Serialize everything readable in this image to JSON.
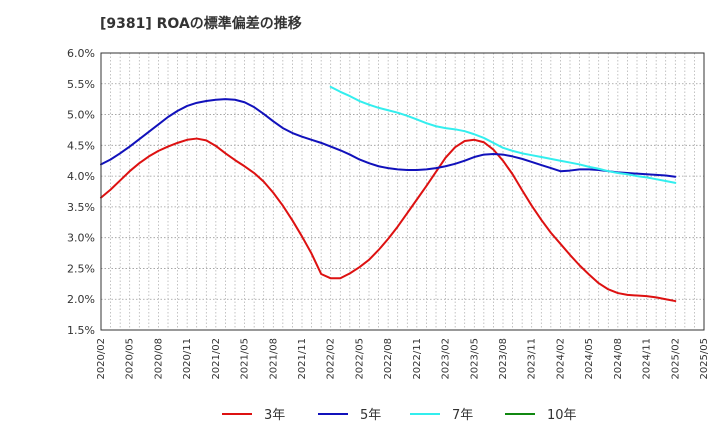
{
  "chart_data": {
    "type": "line",
    "title": "[9381]  ROAの標準偏差の推移",
    "xlabel": "",
    "ylabel": "",
    "ylim": [
      0.015,
      0.06
    ],
    "y_ticks": [
      "6.0%",
      "5.5%",
      "5.0%",
      "4.5%",
      "4.0%",
      "3.5%",
      "3.0%",
      "2.5%",
      "2.0%",
      "1.5%"
    ],
    "y_tick_values": [
      0.06,
      0.055,
      0.05,
      0.045,
      0.04,
      0.035,
      0.03,
      0.025,
      0.02,
      0.015
    ],
    "x_tick_labels": [
      "2020/02",
      "2020/05",
      "2020/08",
      "2020/11",
      "2021/02",
      "2021/05",
      "2021/08",
      "2021/11",
      "2022/02",
      "2022/05",
      "2022/08",
      "2022/11",
      "2023/02",
      "2023/05",
      "2023/08",
      "2023/11",
      "2024/02",
      "2024/05",
      "2024/08",
      "2024/11",
      "2025/02",
      "2025/05"
    ],
    "grid": true,
    "legend_position": "bottom",
    "colors": {
      "3y": "#dd1111",
      "5y": "#1111bb",
      "7y": "#33eeee",
      "10y": "#118811"
    },
    "series": [
      {
        "name": "3年",
        "color": "#dd1111",
        "points": [
          [
            "2020/02",
            0.0365
          ],
          [
            "2020/03",
            0.0378
          ],
          [
            "2020/04",
            0.0393
          ],
          [
            "2020/05",
            0.0408
          ],
          [
            "2020/06",
            0.0421
          ],
          [
            "2020/07",
            0.0432
          ],
          [
            "2020/08",
            0.0441
          ],
          [
            "2020/09",
            0.0448
          ],
          [
            "2020/10",
            0.0454
          ],
          [
            "2020/11",
            0.0459
          ],
          [
            "2020/12",
            0.0461
          ],
          [
            "2021/01",
            0.0458
          ],
          [
            "2021/02",
            0.0449
          ],
          [
            "2021/03",
            0.0437
          ],
          [
            "2021/04",
            0.0426
          ],
          [
            "2021/05",
            0.0416
          ],
          [
            "2021/06",
            0.0405
          ],
          [
            "2021/07",
            0.0391
          ],
          [
            "2021/08",
            0.0373
          ],
          [
            "2021/09",
            0.0352
          ],
          [
            "2021/10",
            0.0328
          ],
          [
            "2021/11",
            0.0302
          ],
          [
            "2021/12",
            0.0274
          ],
          [
            "2022/01",
            0.0241
          ],
          [
            "2022/02",
            0.0234
          ],
          [
            "2022/03",
            0.0234
          ],
          [
            "2022/04",
            0.0242
          ],
          [
            "2022/05",
            0.0252
          ],
          [
            "2022/06",
            0.0264
          ],
          [
            "2022/07",
            0.028
          ],
          [
            "2022/08",
            0.0298
          ],
          [
            "2022/09",
            0.0318
          ],
          [
            "2022/10",
            0.034
          ],
          [
            "2022/11",
            0.0362
          ],
          [
            "2022/12",
            0.0384
          ],
          [
            "2023/01",
            0.0407
          ],
          [
            "2023/02",
            0.043
          ],
          [
            "2023/03",
            0.0447
          ],
          [
            "2023/04",
            0.0457
          ],
          [
            "2023/05",
            0.0459
          ],
          [
            "2023/06",
            0.0455
          ],
          [
            "2023/07",
            0.0443
          ],
          [
            "2023/08",
            0.0425
          ],
          [
            "2023/09",
            0.0403
          ],
          [
            "2023/10",
            0.0377
          ],
          [
            "2023/11",
            0.0352
          ],
          [
            "2023/12",
            0.0329
          ],
          [
            "2024/01",
            0.0308
          ],
          [
            "2024/02",
            0.029
          ],
          [
            "2024/03",
            0.0272
          ],
          [
            "2024/04",
            0.0255
          ],
          [
            "2024/05",
            0.024
          ],
          [
            "2024/06",
            0.0226
          ],
          [
            "2024/07",
            0.0216
          ],
          [
            "2024/08",
            0.021
          ],
          [
            "2024/09",
            0.0207
          ],
          [
            "2024/10",
            0.0206
          ],
          [
            "2024/11",
            0.0205
          ],
          [
            "2024/12",
            0.0203
          ],
          [
            "2025/01",
            0.02
          ],
          [
            "2025/02",
            0.0197
          ]
        ]
      },
      {
        "name": "5年",
        "color": "#1111bb",
        "points": [
          [
            "2020/02",
            0.0419
          ],
          [
            "2020/03",
            0.0427
          ],
          [
            "2020/04",
            0.0437
          ],
          [
            "2020/05",
            0.0448
          ],
          [
            "2020/06",
            0.046
          ],
          [
            "2020/07",
            0.0472
          ],
          [
            "2020/08",
            0.0484
          ],
          [
            "2020/09",
            0.0496
          ],
          [
            "2020/10",
            0.0506
          ],
          [
            "2020/11",
            0.0514
          ],
          [
            "2020/12",
            0.0519
          ],
          [
            "2021/01",
            0.0522
          ],
          [
            "2021/02",
            0.0524
          ],
          [
            "2021/03",
            0.0525
          ],
          [
            "2021/04",
            0.0524
          ],
          [
            "2021/05",
            0.052
          ],
          [
            "2021/06",
            0.0512
          ],
          [
            "2021/07",
            0.0501
          ],
          [
            "2021/08",
            0.0489
          ],
          [
            "2021/09",
            0.0478
          ],
          [
            "2021/10",
            0.047
          ],
          [
            "2021/11",
            0.0464
          ],
          [
            "2021/12",
            0.0459
          ],
          [
            "2022/01",
            0.0454
          ],
          [
            "2022/02",
            0.0448
          ],
          [
            "2022/03",
            0.0442
          ],
          [
            "2022/04",
            0.0435
          ],
          [
            "2022/05",
            0.0427
          ],
          [
            "2022/06",
            0.0421
          ],
          [
            "2022/07",
            0.0416
          ],
          [
            "2022/08",
            0.0413
          ],
          [
            "2022/09",
            0.0411
          ],
          [
            "2022/10",
            0.041
          ],
          [
            "2022/11",
            0.041
          ],
          [
            "2022/12",
            0.0411
          ],
          [
            "2023/01",
            0.0413
          ],
          [
            "2023/02",
            0.0416
          ],
          [
            "2023/03",
            0.042
          ],
          [
            "2023/04",
            0.0425
          ],
          [
            "2023/05",
            0.0431
          ],
          [
            "2023/06",
            0.0435
          ],
          [
            "2023/07",
            0.0436
          ],
          [
            "2023/08",
            0.0435
          ],
          [
            "2023/09",
            0.0432
          ],
          [
            "2023/10",
            0.0428
          ],
          [
            "2023/11",
            0.0423
          ],
          [
            "2023/12",
            0.0418
          ],
          [
            "2024/01",
            0.0413
          ],
          [
            "2024/02",
            0.0408
          ],
          [
            "2024/03",
            0.0409
          ],
          [
            "2024/04",
            0.0411
          ],
          [
            "2024/05",
            0.0411
          ],
          [
            "2024/06",
            0.041
          ],
          [
            "2024/07",
            0.0408
          ],
          [
            "2024/08",
            0.0406
          ],
          [
            "2024/09",
            0.0405
          ],
          [
            "2024/10",
            0.0404
          ],
          [
            "2024/11",
            0.0403
          ],
          [
            "2024/12",
            0.0402
          ],
          [
            "2025/01",
            0.0401
          ],
          [
            "2025/02",
            0.0399
          ]
        ]
      },
      {
        "name": "7年",
        "color": "#33eeee",
        "points": [
          [
            "2022/02",
            0.0545
          ],
          [
            "2022/03",
            0.0537
          ],
          [
            "2022/04",
            0.053
          ],
          [
            "2022/05",
            0.0522
          ],
          [
            "2022/06",
            0.0516
          ],
          [
            "2022/07",
            0.0511
          ],
          [
            "2022/08",
            0.0507
          ],
          [
            "2022/09",
            0.0503
          ],
          [
            "2022/10",
            0.0498
          ],
          [
            "2022/11",
            0.0492
          ],
          [
            "2022/12",
            0.0486
          ],
          [
            "2023/01",
            0.0481
          ],
          [
            "2023/02",
            0.0478
          ],
          [
            "2023/03",
            0.0476
          ],
          [
            "2023/04",
            0.0473
          ],
          [
            "2023/05",
            0.0468
          ],
          [
            "2023/06",
            0.0462
          ],
          [
            "2023/07",
            0.0454
          ],
          [
            "2023/08",
            0.0446
          ],
          [
            "2023/09",
            0.0441
          ],
          [
            "2023/10",
            0.0437
          ],
          [
            "2023/11",
            0.0434
          ],
          [
            "2023/12",
            0.0431
          ],
          [
            "2024/01",
            0.0428
          ],
          [
            "2024/02",
            0.0425
          ],
          [
            "2024/03",
            0.0422
          ],
          [
            "2024/04",
            0.0419
          ],
          [
            "2024/05",
            0.0415
          ],
          [
            "2024/06",
            0.0412
          ],
          [
            "2024/07",
            0.0408
          ],
          [
            "2024/08",
            0.0405
          ],
          [
            "2024/09",
            0.0403
          ],
          [
            "2024/10",
            0.04
          ],
          [
            "2024/11",
            0.0398
          ],
          [
            "2024/12",
            0.0395
          ],
          [
            "2025/01",
            0.0392
          ],
          [
            "2025/02",
            0.0389
          ]
        ]
      },
      {
        "name": "10年",
        "color": "#118811",
        "points": []
      }
    ]
  }
}
